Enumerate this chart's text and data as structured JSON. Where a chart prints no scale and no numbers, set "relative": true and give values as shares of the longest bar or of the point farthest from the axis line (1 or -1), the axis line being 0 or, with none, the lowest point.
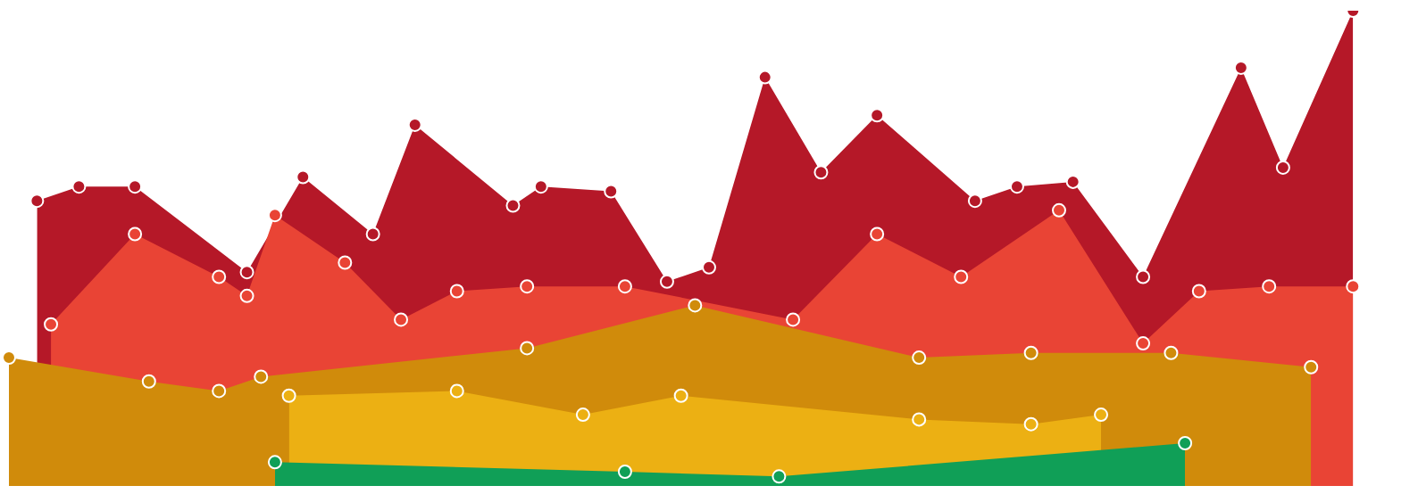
{
  "chart_data": {
    "type": "area",
    "relative": true,
    "marker": "circle",
    "categories": [
      null,
      null,
      null,
      null,
      null,
      null,
      null,
      null,
      null,
      null,
      null,
      null,
      null,
      null,
      null,
      null,
      null,
      null,
      null,
      null,
      null,
      null,
      null,
      null,
      null,
      null,
      null,
      null,
      null,
      null,
      null,
      null,
      null,
      null,
      null,
      null,
      null,
      null,
      null,
      null,
      null,
      null,
      null,
      null,
      null,
      null,
      null,
      null,
      null,
      null,
      null,
      null,
      null,
      null,
      null,
      null,
      null,
      null,
      null,
      null,
      null,
      null,
      null,
      null,
      null,
      null,
      null,
      null,
      null,
      null,
      null,
      null,
      null,
      null,
      null,
      null,
      null,
      null,
      null,
      null,
      null,
      null,
      null,
      null,
      null,
      null,
      null,
      null,
      null,
      null,
      null,
      null,
      null,
      null,
      null,
      null,
      null,
      null,
      null,
      null,
      null
    ],
    "series": [
      {
        "color": "#b51828",
        "values": [
          null,
          null,
          0.6,
          null,
          null,
          0.63,
          null,
          null,
          null,
          0.63,
          null,
          null,
          null,
          null,
          null,
          null,
          null,
          0.45,
          null,
          null,
          null,
          0.65,
          null,
          null,
          null,
          null,
          0.53,
          null,
          null,
          0.76,
          null,
          null,
          null,
          null,
          null,
          null,
          0.59,
          null,
          0.63,
          null,
          null,
          null,
          null,
          0.62,
          null,
          null,
          null,
          0.43,
          null,
          null,
          0.46,
          null,
          null,
          null,
          0.86,
          null,
          null,
          null,
          0.66,
          null,
          null,
          null,
          0.78,
          null,
          null,
          null,
          null,
          null,
          null,
          0.6,
          null,
          null,
          0.63,
          null,
          null,
          null,
          0.64,
          null,
          null,
          null,
          null,
          0.44,
          null,
          null,
          null,
          null,
          null,
          null,
          0.88,
          null,
          null,
          0.67,
          null,
          null,
          null,
          null,
          1,
          null,
          null,
          null,
          null
        ]
      },
      {
        "color": "#e94435",
        "values": [
          null,
          null,
          null,
          0.34,
          null,
          null,
          null,
          null,
          null,
          0.53,
          null,
          null,
          null,
          null,
          null,
          0.44,
          null,
          0.4,
          null,
          0.57,
          null,
          null,
          null,
          null,
          0.47,
          null,
          null,
          null,
          0.35,
          null,
          null,
          null,
          0.41,
          null,
          null,
          null,
          null,
          0.42,
          null,
          null,
          null,
          null,
          null,
          null,
          0.42,
          null,
          null,
          null,
          null,
          null,
          null,
          null,
          null,
          null,
          null,
          null,
          0.35,
          null,
          null,
          null,
          null,
          null,
          0.53,
          null,
          null,
          null,
          null,
          null,
          0.44,
          null,
          null,
          null,
          null,
          null,
          null,
          0.58,
          null,
          null,
          null,
          null,
          null,
          0.3,
          null,
          null,
          null,
          0.41,
          null,
          null,
          null,
          null,
          0.42,
          null,
          null,
          null,
          null,
          null,
          0.42,
          null,
          null,
          null,
          null
        ]
      },
      {
        "color": "#d08b0b",
        "values": [
          0.27,
          null,
          null,
          null,
          null,
          null,
          null,
          null,
          null,
          null,
          0.22,
          null,
          null,
          null,
          null,
          0.2,
          null,
          null,
          0.23,
          null,
          null,
          null,
          null,
          null,
          null,
          null,
          null,
          null,
          null,
          null,
          null,
          null,
          null,
          null,
          null,
          null,
          null,
          0.29,
          null,
          null,
          null,
          null,
          null,
          null,
          null,
          null,
          null,
          null,
          null,
          0.38,
          null,
          null,
          null,
          null,
          null,
          null,
          null,
          null,
          null,
          null,
          null,
          null,
          null,
          null,
          null,
          0.27,
          null,
          null,
          null,
          null,
          null,
          null,
          null,
          0.28,
          null,
          null,
          null,
          null,
          null,
          null,
          null,
          null,
          null,
          0.28,
          null,
          null,
          null,
          null,
          null,
          null,
          null,
          null,
          null,
          0.25,
          null,
          null,
          null,
          null,
          null,
          null,
          null
        ]
      },
      {
        "color": "#ecb013",
        "values": [
          null,
          null,
          null,
          null,
          null,
          null,
          null,
          null,
          null,
          null,
          null,
          null,
          null,
          null,
          null,
          null,
          null,
          null,
          null,
          null,
          0.19,
          null,
          null,
          null,
          null,
          null,
          null,
          null,
          null,
          null,
          null,
          null,
          0.2,
          null,
          null,
          null,
          null,
          null,
          null,
          null,
          null,
          0.15,
          null,
          null,
          null,
          null,
          null,
          null,
          0.19,
          null,
          null,
          null,
          null,
          null,
          null,
          null,
          null,
          null,
          null,
          null,
          null,
          null,
          null,
          null,
          null,
          0.14,
          null,
          null,
          null,
          null,
          null,
          null,
          null,
          0.13,
          null,
          null,
          null,
          null,
          0.15,
          null,
          null,
          null,
          null,
          null,
          null,
          null,
          null,
          null,
          null,
          null,
          null,
          null,
          null,
          null,
          null,
          null,
          null,
          null,
          null,
          null,
          null
        ]
      },
      {
        "color": "#109f57",
        "values": [
          null,
          null,
          null,
          null,
          null,
          null,
          null,
          null,
          null,
          null,
          null,
          null,
          null,
          null,
          null,
          null,
          null,
          null,
          null,
          0.05,
          null,
          null,
          null,
          null,
          null,
          null,
          null,
          null,
          null,
          null,
          null,
          null,
          null,
          null,
          null,
          null,
          null,
          null,
          null,
          null,
          null,
          null,
          null,
          null,
          0.03,
          null,
          null,
          null,
          null,
          null,
          null,
          null,
          null,
          null,
          null,
          0.02,
          null,
          null,
          null,
          null,
          null,
          null,
          null,
          null,
          null,
          null,
          null,
          null,
          null,
          null,
          null,
          null,
          null,
          null,
          null,
          null,
          null,
          null,
          null,
          null,
          null,
          null,
          null,
          null,
          0.09,
          null,
          null,
          null,
          null,
          null,
          null,
          null,
          null,
          null,
          null,
          null,
          null,
          null,
          null,
          null,
          null
        ]
      }
    ]
  }
}
